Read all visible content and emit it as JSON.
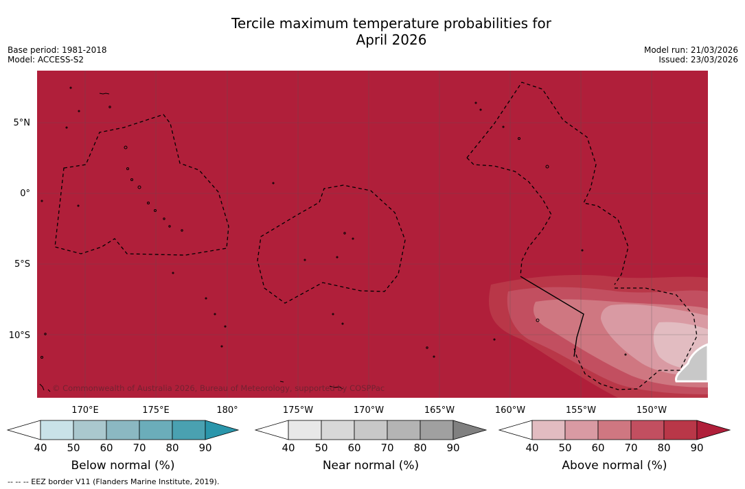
{
  "title_line1": "Tercile maximum temperature probabilities for",
  "title_line2": "April 2026",
  "meta_left": {
    "base_period": "Base period: 1981-2018",
    "model": "Model: ACCESS-S2"
  },
  "meta_right": {
    "model_run": "Model run: 21/03/2026",
    "issued": "Issued: 23/03/2026"
  },
  "map": {
    "lat_labels": [
      "5°N",
      "0°",
      "5°S",
      "10°S"
    ],
    "lon_labels": [
      "170°E",
      "175°E",
      "180°",
      "175°W",
      "170°W",
      "165°W",
      "160°W",
      "155°W",
      "150°W"
    ],
    "copyright": "© Commonwealth of Australia 2026, Bureau of Meteorology, supported by COSPPac",
    "colors": {
      "above_dominant": "#b01f3a",
      "ocean_bg": "#b01f3a"
    }
  },
  "colorbars": [
    {
      "id": "below",
      "label": "Below normal (%)",
      "ticks": [
        "40",
        "50",
        "60",
        "70",
        "80",
        "90"
      ],
      "colors": [
        "#ffffff",
        "#c9e2e8",
        "#aac8ce",
        "#8bb8c2",
        "#6badba",
        "#4aa1b1",
        "#2a96ab"
      ]
    },
    {
      "id": "near",
      "label": "Near normal (%)",
      "ticks": [
        "40",
        "50",
        "60",
        "70",
        "80",
        "90"
      ],
      "colors": [
        "#ffffff",
        "#e8e8e8",
        "#d8d8d8",
        "#c8c8c8",
        "#b4b4b4",
        "#a0a0a0",
        "#808080"
      ]
    },
    {
      "id": "above",
      "label": "Above normal (%)",
      "ticks": [
        "40",
        "50",
        "60",
        "70",
        "80",
        "90"
      ],
      "colors": [
        "#ffffff",
        "#e2bcc1",
        "#d99aa3",
        "#cf7781",
        "#c24f60",
        "#b93748",
        "#b01f3a"
      ]
    }
  ],
  "footnote": "--  --  -- EEZ border V11 (Flanders Marine Institute, 2019)."
}
